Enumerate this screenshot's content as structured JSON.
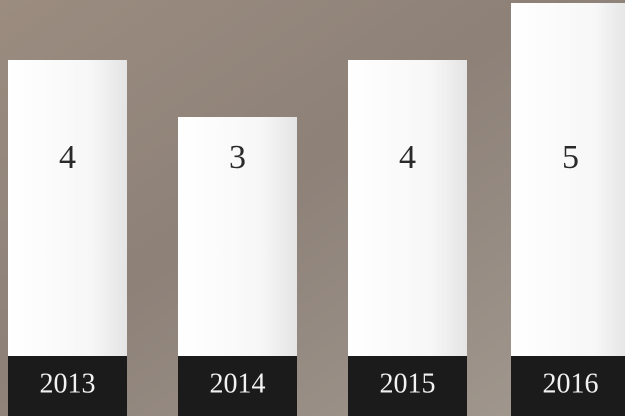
{
  "chart_data": {
    "type": "bar",
    "categories": [
      "2013",
      "2014",
      "2015",
      "2016"
    ],
    "values": [
      4,
      3,
      4,
      5
    ]
  }
}
